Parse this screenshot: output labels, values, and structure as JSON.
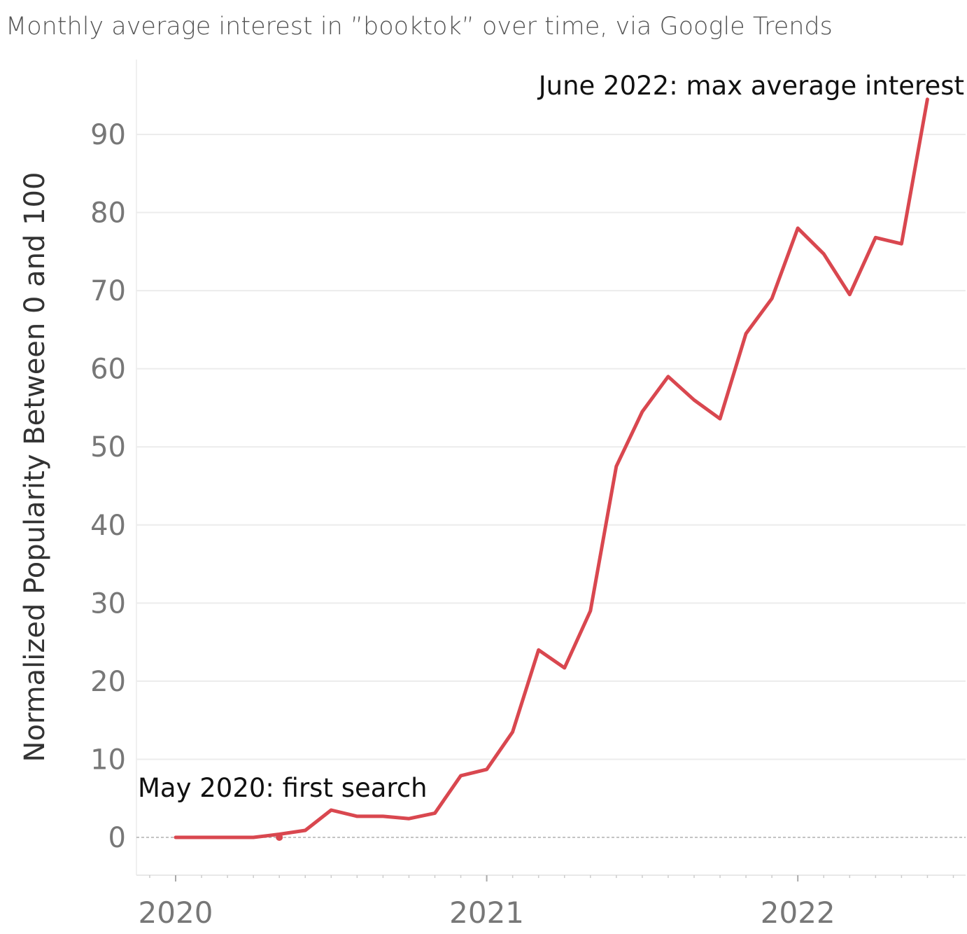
{
  "chart_data": {
    "type": "line",
    "title": "Monthly average interest in ”booktok” over time, via Google Trends",
    "ylabel": "Normalized Popularity Between 0 and 100",
    "xlabel": "",
    "ylim": [
      -5,
      100
    ],
    "yticks": [
      0,
      10,
      20,
      30,
      40,
      50,
      60,
      70,
      80,
      90
    ],
    "xticks": [
      "2020",
      "2021",
      "2022"
    ],
    "grid": true,
    "line_color": "#d9474f",
    "series": [
      {
        "x": [
          "2020-01",
          "2020-02",
          "2020-03",
          "2020-04",
          "2020-05",
          "2020-06",
          "2020-07",
          "2020-08",
          "2020-09",
          "2020-10",
          "2020-11",
          "2020-12",
          "2021-01",
          "2021-02",
          "2021-03",
          "2021-04",
          "2021-05",
          "2021-06",
          "2021-07",
          "2021-08",
          "2021-09",
          "2021-10",
          "2021-11",
          "2021-12",
          "2022-01",
          "2022-02",
          "2022-03",
          "2022-04",
          "2022-05",
          "2022-06"
        ],
        "values": [
          0,
          0,
          0,
          0,
          0.4,
          0.9,
          3.5,
          2.7,
          2.7,
          2.4,
          3.1,
          7.9,
          8.7,
          13.5,
          24,
          21.7,
          29,
          47.5,
          54.5,
          59,
          56,
          53.6,
          64.5,
          69,
          78,
          74.7,
          69.5,
          76.8,
          76,
          94.5
        ]
      }
    ],
    "annotations": [
      {
        "text": "May 2020: first search",
        "x": "2020-05",
        "y": 0
      },
      {
        "text": "June 2022: max average interest",
        "x": "2022-06",
        "y": 94.5
      }
    ]
  }
}
